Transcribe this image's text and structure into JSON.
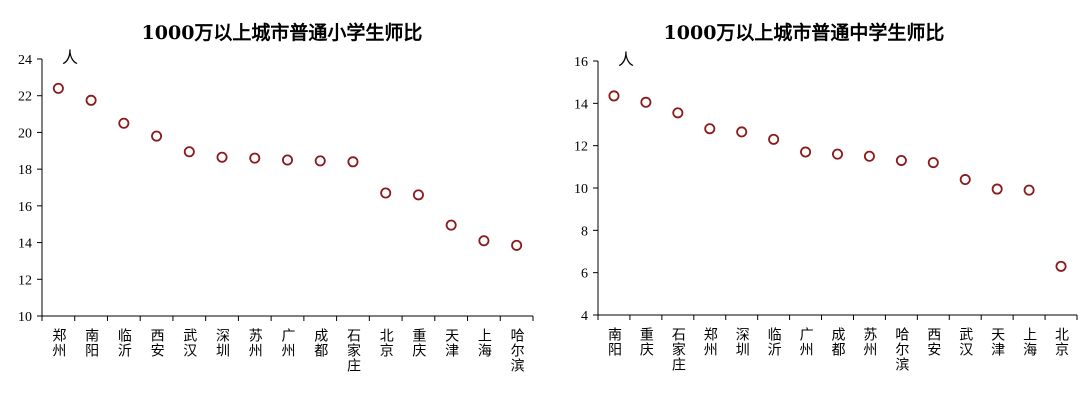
{
  "chart_data": [
    {
      "type": "scatter",
      "title": "1000万以上城市普通小学生师比",
      "unit": "人",
      "categories": [
        "郑州",
        "南阳",
        "临沂",
        "西安",
        "武汉",
        "深圳",
        "苏州",
        "广州",
        "成都",
        "石家庄",
        "北京",
        "重庆",
        "天津",
        "上海",
        "哈尔滨"
      ],
      "values": [
        22.4,
        21.75,
        20.5,
        19.8,
        18.95,
        18.65,
        18.6,
        18.5,
        18.45,
        18.4,
        16.7,
        16.6,
        14.95,
        14.1,
        13.85
      ],
      "ylim": [
        10,
        24
      ],
      "yticks": [
        10,
        12,
        14,
        16,
        18,
        20,
        22,
        24
      ],
      "grid": false,
      "marker_color": "#8b1a1a"
    },
    {
      "type": "scatter",
      "title": "1000万以上城市普通中学生师比",
      "unit": "人",
      "categories": [
        "南阳",
        "重庆",
        "石家庄",
        "郑州",
        "深圳",
        "临沂",
        "广州",
        "成都",
        "苏州",
        "哈尔滨",
        "西安",
        "武汉",
        "天津",
        "上海",
        "北京"
      ],
      "values": [
        14.35,
        14.05,
        13.55,
        12.8,
        12.65,
        12.3,
        11.7,
        11.6,
        11.5,
        11.3,
        11.2,
        10.4,
        9.95,
        9.9,
        6.3
      ],
      "ylim": [
        4,
        16
      ],
      "yticks": [
        4,
        6,
        8,
        10,
        12,
        14,
        16
      ],
      "grid": false,
      "marker_color": "#8b1a1a"
    }
  ]
}
